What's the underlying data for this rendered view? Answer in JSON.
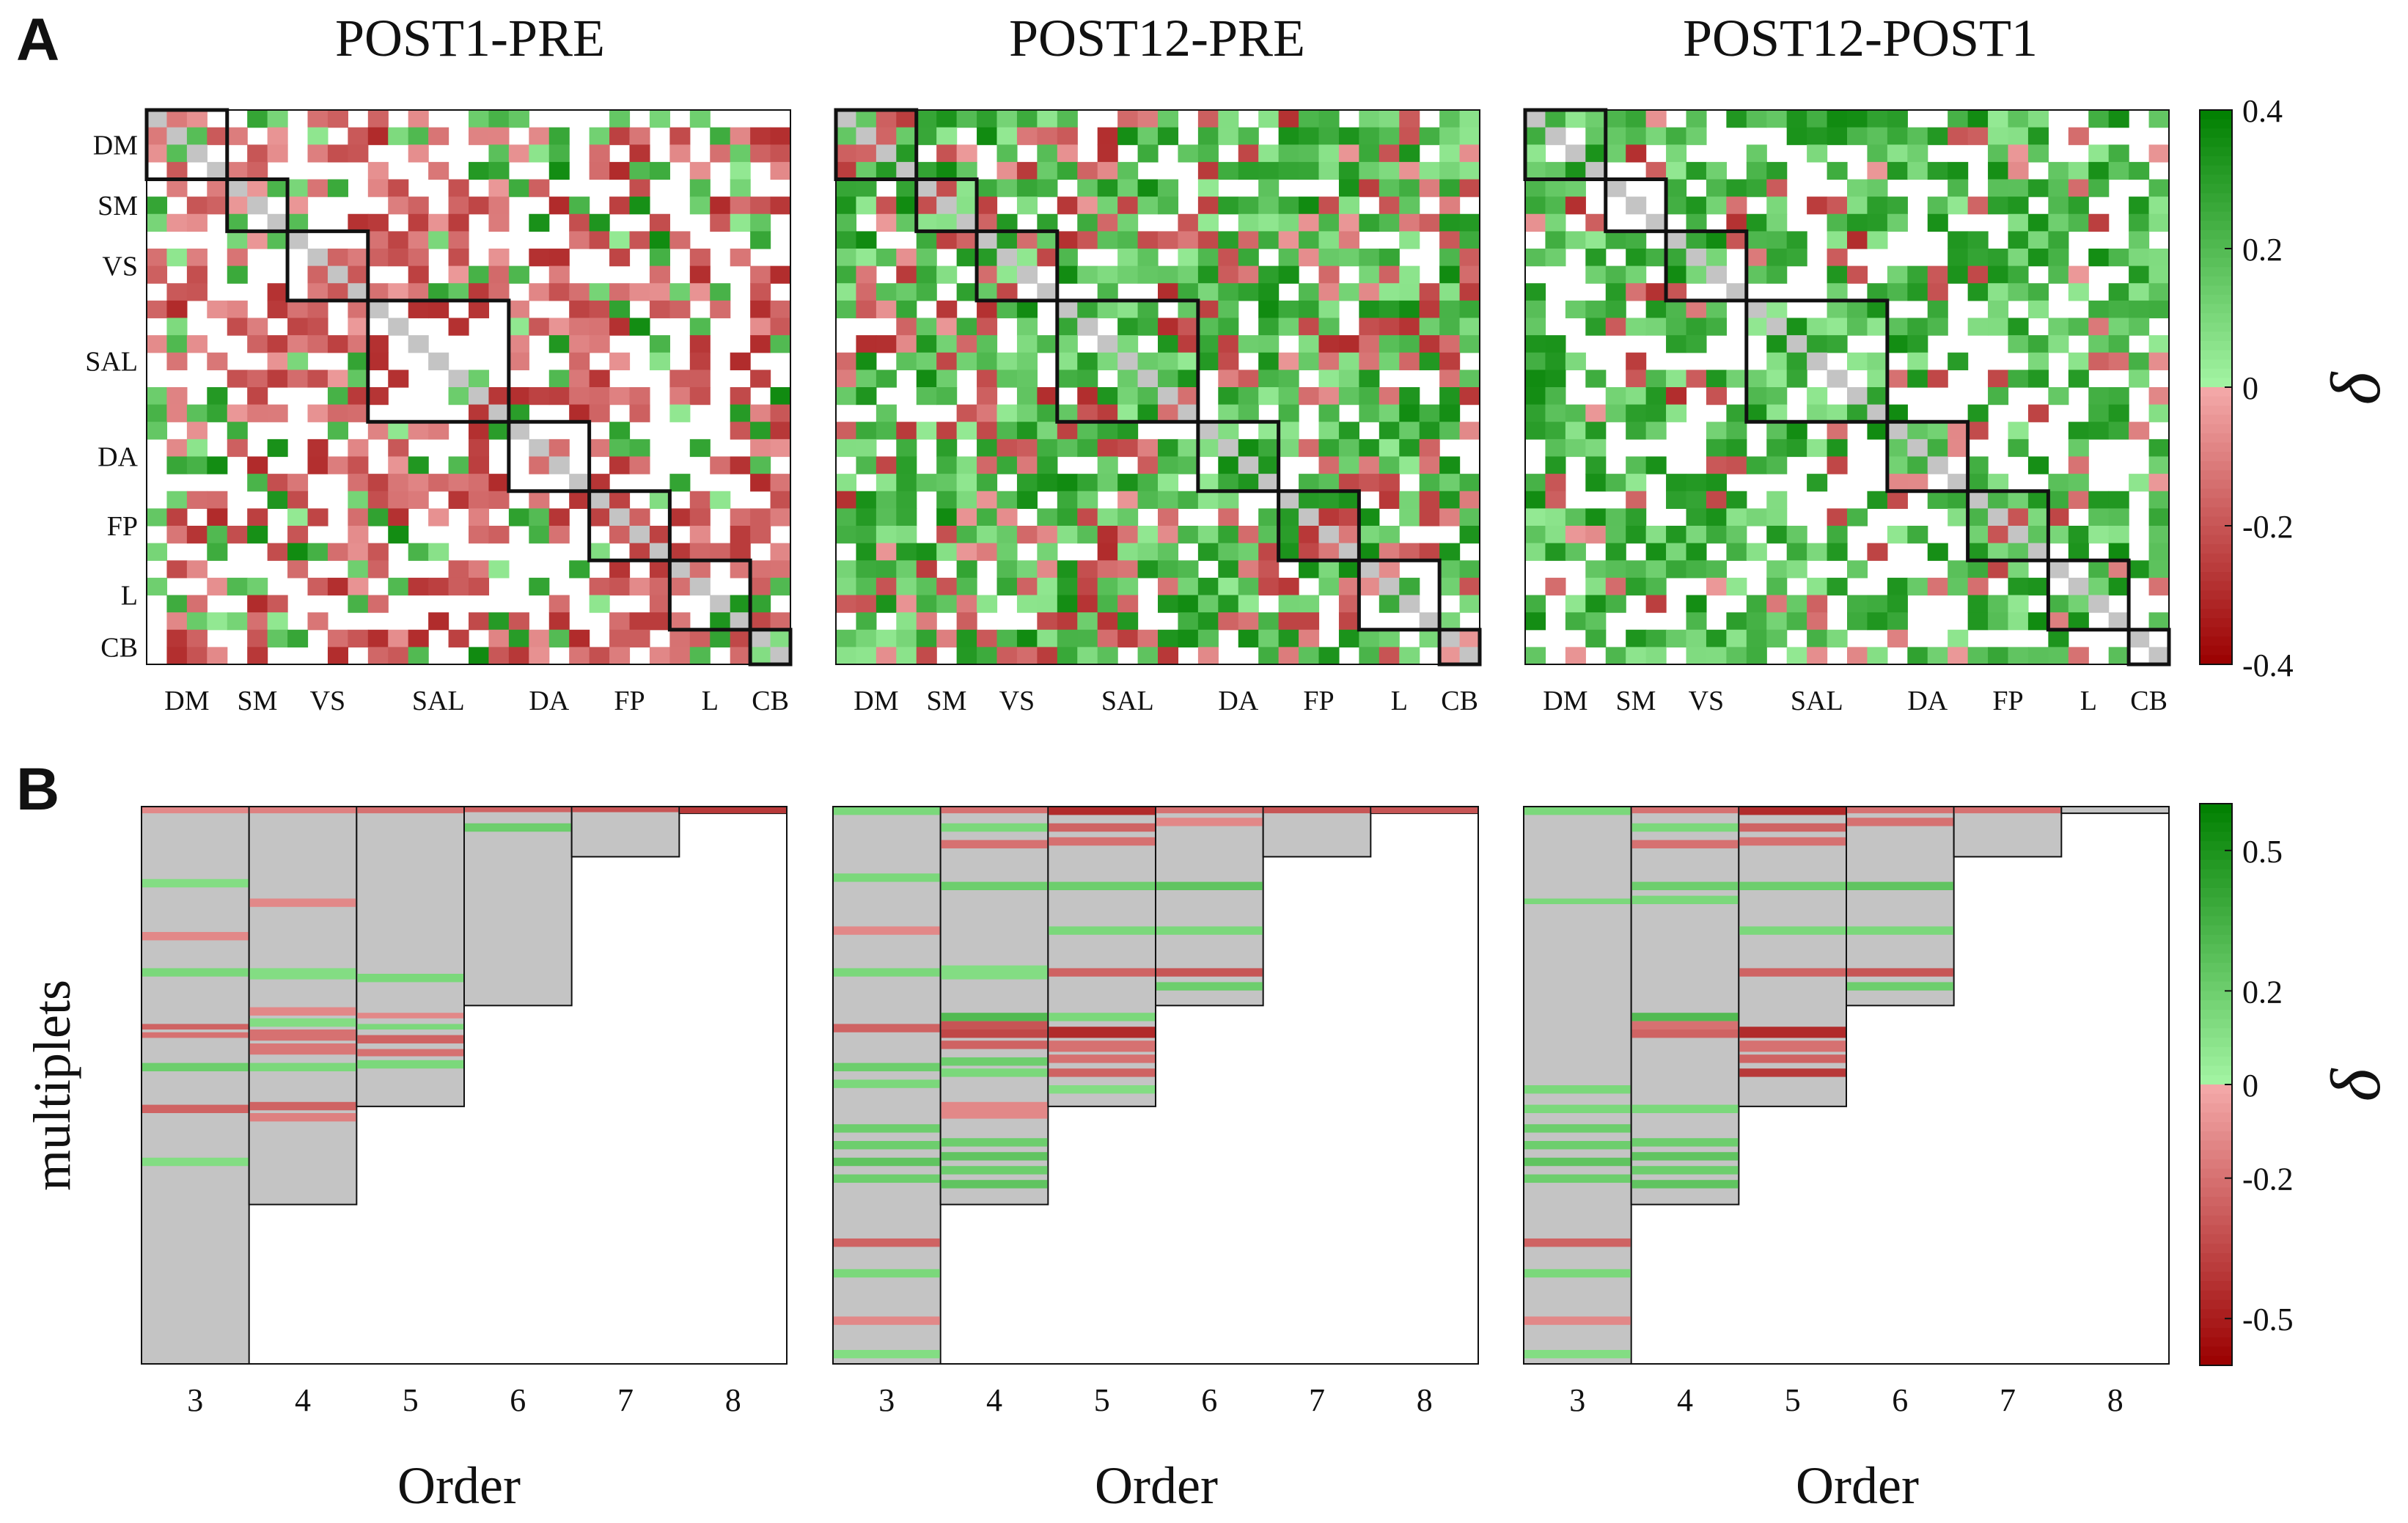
{
  "figure": {
    "panel_a_letter": "A",
    "panel_b_letter": "B"
  },
  "colors": {
    "green_dark": "#007f00",
    "green_light": "#a4f5a4",
    "red_light": "#f4aaaa",
    "red_dark": "#9a0000",
    "gray_cell": "#c4c4c4",
    "frame": "#111111"
  },
  "chart_data": [
    {
      "type": "heatmap",
      "title": "POST1-PRE",
      "networks": [
        "DM",
        "SM",
        "VS",
        "SAL",
        "DA",
        "FP",
        "L",
        "CB"
      ],
      "network_sizes": [
        4,
        3,
        4,
        7,
        4,
        4,
        4,
        2
      ],
      "matrix_size": 32,
      "clim": [
        -0.4,
        0.4
      ],
      "colorbar_ticks": [
        0.4,
        0.2,
        0,
        -0.2,
        -0.4
      ],
      "colorbar_label": "δ",
      "profile": {
        "green": 0.18,
        "red": 0.42,
        "zero": 0.4
      },
      "seed": 11
    },
    {
      "type": "heatmap",
      "title": "POST12-PRE",
      "networks": [
        "DM",
        "SM",
        "VS",
        "SAL",
        "DA",
        "FP",
        "L",
        "CB"
      ],
      "network_sizes": [
        4,
        3,
        4,
        7,
        4,
        4,
        4,
        2
      ],
      "matrix_size": 32,
      "clim": [
        -0.4,
        0.4
      ],
      "profile": {
        "green": 0.55,
        "red": 0.25,
        "zero": 0.2
      },
      "seed": 23
    },
    {
      "type": "heatmap",
      "title": "POST12-POST1",
      "networks": [
        "DM",
        "SM",
        "VS",
        "SAL",
        "DA",
        "FP",
        "L",
        "CB"
      ],
      "network_sizes": [
        4,
        3,
        4,
        7,
        4,
        4,
        4,
        2
      ],
      "matrix_size": 32,
      "clim": [
        -0.4,
        0.4
      ],
      "profile": {
        "green": 0.52,
        "red": 0.12,
        "zero": 0.36
      },
      "seed": 37
    },
    {
      "type": "heatmap",
      "subtype": "multiplets",
      "orders": [
        3,
        4,
        5,
        6,
        7,
        8
      ],
      "ylabel": "multiplets",
      "xlabel": "Order",
      "order_fill_fraction": [
        1.0,
        0.714,
        0.538,
        0.357,
        0.09,
        0.012
      ],
      "bands": [
        [
          [
            0.0,
            0.012,
            -0.12
          ],
          [
            0.13,
            0.145,
            0.12
          ],
          [
            0.225,
            0.24,
            -0.12
          ],
          [
            0.29,
            0.305,
            0.15
          ],
          [
            0.39,
            0.4,
            -0.25
          ],
          [
            0.405,
            0.415,
            -0.2
          ],
          [
            0.46,
            0.475,
            0.2
          ],
          [
            0.535,
            0.55,
            -0.25
          ],
          [
            0.63,
            0.645,
            0.12
          ]
        ],
        [
          [
            0.0,
            0.012,
            -0.15
          ],
          [
            0.165,
            0.18,
            -0.12
          ],
          [
            0.29,
            0.31,
            0.12
          ],
          [
            0.36,
            0.375,
            -0.12
          ],
          [
            0.38,
            0.395,
            0.12
          ],
          [
            0.4,
            0.42,
            -0.2
          ],
          [
            0.425,
            0.445,
            -0.18
          ],
          [
            0.46,
            0.475,
            0.15
          ],
          [
            0.53,
            0.545,
            -0.25
          ],
          [
            0.55,
            0.565,
            -0.15
          ]
        ],
        [
          [
            0.0,
            0.012,
            -0.2
          ],
          [
            0.3,
            0.315,
            0.15
          ],
          [
            0.37,
            0.38,
            -0.12
          ],
          [
            0.39,
            0.4,
            0.15
          ],
          [
            0.41,
            0.425,
            -0.25
          ],
          [
            0.435,
            0.448,
            -0.2
          ],
          [
            0.455,
            0.47,
            0.15
          ]
        ],
        [
          [
            0.0,
            0.01,
            -0.25
          ],
          [
            0.03,
            0.045,
            0.2
          ]
        ],
        [
          [
            0.0,
            0.01,
            -0.3
          ]
        ],
        [
          [
            0.0,
            0.012,
            -0.4
          ]
        ]
      ],
      "cbar_ticks": [
        0.5,
        0.2,
        0,
        -0.2,
        -0.5
      ],
      "clim": [
        -0.6,
        0.6
      ],
      "panel_titles": [
        "POST1-PRE",
        "POST12-PRE",
        "POST12-POST1"
      ]
    },
    {
      "type": "heatmap",
      "subtype": "multiplets",
      "orders": [
        3,
        4,
        5,
        6,
        7,
        8
      ],
      "xlabel": "Order",
      "order_fill_fraction": [
        1.0,
        0.714,
        0.538,
        0.357,
        0.09,
        0.012
      ],
      "bands": [
        [
          [
            0.0,
            0.015,
            0.15
          ],
          [
            0.12,
            0.135,
            0.15
          ],
          [
            0.215,
            0.23,
            -0.12
          ],
          [
            0.29,
            0.305,
            0.15
          ],
          [
            0.39,
            0.405,
            -0.25
          ],
          [
            0.46,
            0.475,
            0.2
          ],
          [
            0.49,
            0.505,
            0.15
          ],
          [
            0.57,
            0.585,
            0.2
          ],
          [
            0.6,
            0.615,
            0.2
          ],
          [
            0.63,
            0.645,
            0.25
          ],
          [
            0.66,
            0.675,
            0.2
          ],
          [
            0.775,
            0.79,
            -0.25
          ],
          [
            0.83,
            0.845,
            0.15
          ],
          [
            0.915,
            0.93,
            -0.12
          ],
          [
            0.975,
            0.99,
            0.12
          ]
        ],
        [
          [
            0.0,
            0.012,
            -0.2
          ],
          [
            0.03,
            0.045,
            0.15
          ],
          [
            0.06,
            0.075,
            -0.2
          ],
          [
            0.135,
            0.15,
            0.2
          ],
          [
            0.285,
            0.31,
            0.12
          ],
          [
            0.37,
            0.385,
            0.3
          ],
          [
            0.385,
            0.4,
            -0.3
          ],
          [
            0.4,
            0.415,
            -0.35
          ],
          [
            0.42,
            0.435,
            -0.25
          ],
          [
            0.45,
            0.465,
            0.2
          ],
          [
            0.47,
            0.485,
            0.15
          ],
          [
            0.53,
            0.56,
            -0.12
          ],
          [
            0.595,
            0.61,
            0.2
          ],
          [
            0.62,
            0.635,
            0.25
          ],
          [
            0.645,
            0.66,
            0.2
          ],
          [
            0.67,
            0.685,
            0.25
          ]
        ],
        [
          [
            0.0,
            0.015,
            -0.45
          ],
          [
            0.03,
            0.045,
            -0.25
          ],
          [
            0.055,
            0.07,
            -0.2
          ],
          [
            0.135,
            0.15,
            0.2
          ],
          [
            0.215,
            0.23,
            0.15
          ],
          [
            0.29,
            0.305,
            -0.25
          ],
          [
            0.37,
            0.385,
            0.15
          ],
          [
            0.395,
            0.415,
            -0.45
          ],
          [
            0.42,
            0.44,
            -0.2
          ],
          [
            0.445,
            0.46,
            -0.2
          ],
          [
            0.47,
            0.485,
            -0.25
          ],
          [
            0.5,
            0.515,
            0.12
          ]
        ],
        [
          [
            0.0,
            0.012,
            -0.2
          ],
          [
            0.02,
            0.035,
            -0.12
          ],
          [
            0.135,
            0.15,
            0.25
          ],
          [
            0.215,
            0.23,
            0.15
          ],
          [
            0.29,
            0.305,
            -0.3
          ],
          [
            0.315,
            0.33,
            0.2
          ]
        ],
        [
          [
            0.0,
            0.012,
            -0.3
          ]
        ],
        [
          [
            0.0,
            0.012,
            -0.3
          ]
        ]
      ],
      "clim": [
        -0.6,
        0.6
      ]
    },
    {
      "type": "heatmap",
      "subtype": "multiplets",
      "orders": [
        3,
        4,
        5,
        6,
        7,
        8
      ],
      "xlabel": "Order",
      "order_fill_fraction": [
        1.0,
        0.714,
        0.538,
        0.357,
        0.09,
        0.012
      ],
      "bands": [
        [
          [
            0.0,
            0.015,
            0.15
          ],
          [
            0.165,
            0.175,
            0.15
          ],
          [
            0.5,
            0.515,
            0.15
          ],
          [
            0.535,
            0.55,
            0.15
          ],
          [
            0.57,
            0.585,
            0.2
          ],
          [
            0.6,
            0.615,
            0.2
          ],
          [
            0.63,
            0.645,
            0.25
          ],
          [
            0.66,
            0.675,
            0.2
          ],
          [
            0.775,
            0.79,
            -0.25
          ],
          [
            0.83,
            0.845,
            0.15
          ],
          [
            0.915,
            0.93,
            -0.12
          ],
          [
            0.975,
            0.99,
            0.12
          ]
        ],
        [
          [
            0.0,
            0.012,
            -0.2
          ],
          [
            0.03,
            0.045,
            0.15
          ],
          [
            0.06,
            0.075,
            -0.2
          ],
          [
            0.135,
            0.15,
            0.2
          ],
          [
            0.16,
            0.175,
            0.15
          ],
          [
            0.37,
            0.385,
            0.3
          ],
          [
            0.385,
            0.4,
            -0.2
          ],
          [
            0.4,
            0.415,
            -0.25
          ],
          [
            0.535,
            0.55,
            0.15
          ],
          [
            0.595,
            0.61,
            0.2
          ],
          [
            0.62,
            0.635,
            0.25
          ],
          [
            0.645,
            0.66,
            0.2
          ],
          [
            0.67,
            0.685,
            0.25
          ]
        ],
        [
          [
            0.0,
            0.015,
            -0.45
          ],
          [
            0.03,
            0.045,
            -0.25
          ],
          [
            0.055,
            0.07,
            -0.2
          ],
          [
            0.135,
            0.15,
            0.2
          ],
          [
            0.215,
            0.23,
            0.15
          ],
          [
            0.29,
            0.305,
            -0.25
          ],
          [
            0.395,
            0.415,
            -0.45
          ],
          [
            0.42,
            0.44,
            -0.2
          ],
          [
            0.445,
            0.46,
            -0.25
          ],
          [
            0.47,
            0.485,
            -0.4
          ]
        ],
        [
          [
            0.0,
            0.012,
            -0.2
          ],
          [
            0.02,
            0.035,
            -0.2
          ],
          [
            0.135,
            0.15,
            0.25
          ],
          [
            0.215,
            0.23,
            0.15
          ],
          [
            0.29,
            0.305,
            -0.3
          ],
          [
            0.315,
            0.33,
            0.2
          ]
        ],
        [
          [
            0.0,
            0.012,
            -0.2
          ]
        ],
        [
          [
            0.0,
            0.012,
            0.0
          ]
        ]
      ],
      "clim": [
        -0.6,
        0.6
      ]
    }
  ]
}
